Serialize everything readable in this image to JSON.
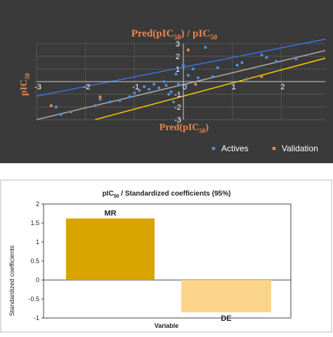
{
  "colors": {
    "panel_bg": "#3a3a3a",
    "axis_label": "#e8884a",
    "tick_text": "#ffffff",
    "actives": "#4f8fd6",
    "validation": "#ef8a4a",
    "upper_bound": "#3b6fd6",
    "fit_line": "#a9a9a9",
    "lower_bound": "#f2c200",
    "bar_mr": "#d9a300",
    "bar_de": "#fcd58a"
  },
  "chart_data": [
    {
      "type": "scatter",
      "title": "Pred(pIC50) / pIC50",
      "title_parts": {
        "pre": "Pred(pIC",
        "sub": "50",
        "post": ") / pIC",
        "sub2": "50"
      },
      "xlabel_parts": {
        "pre": "Pred(pIC",
        "sub": "50",
        "post": ")"
      },
      "ylabel_parts": {
        "pre": "pIC",
        "sub": "50"
      },
      "xlim": [
        -3,
        2.9
      ],
      "ylim": [
        -3,
        3
      ],
      "x_ticks": [
        -3,
        -2,
        -1,
        0,
        1,
        2
      ],
      "x_tick_labels": [
        "-3",
        "-2",
        "-1",
        "0",
        "1",
        "2"
      ],
      "y_ticks": [
        -3,
        -2,
        -1,
        0,
        1,
        2,
        3
      ],
      "y_tick_labels": [
        "-3",
        "-2",
        "-1",
        "0",
        "1",
        "2",
        "3"
      ],
      "legend_position": "bottom",
      "series": [
        {
          "name": "Actives",
          "points": [
            [
              -2.6,
              -2.0
            ],
            [
              -2.5,
              -2.6
            ],
            [
              -2.3,
              -2.4
            ],
            [
              -1.8,
              -1.9
            ],
            [
              -1.7,
              -1.4
            ],
            [
              -1.5,
              -1.6
            ],
            [
              -1.3,
              -1.5
            ],
            [
              -1.1,
              -1.2
            ],
            [
              -1.0,
              -0.9
            ],
            [
              -0.9,
              -0.7
            ],
            [
              -0.8,
              -0.4
            ],
            [
              -0.7,
              -0.6
            ],
            [
              -0.6,
              -0.2
            ],
            [
              -0.5,
              -0.5
            ],
            [
              -0.4,
              0.0
            ],
            [
              -0.35,
              -0.3
            ],
            [
              -0.3,
              -1.0
            ],
            [
              -0.25,
              -0.8
            ],
            [
              -0.2,
              -1.6
            ],
            [
              -0.15,
              0.6
            ],
            [
              -0.1,
              -0.2
            ],
            [
              0.0,
              1.3
            ],
            [
              0.05,
              -0.3
            ],
            [
              0.1,
              0.5
            ],
            [
              0.2,
              1.0
            ],
            [
              0.3,
              0.3
            ],
            [
              0.45,
              2.7
            ],
            [
              0.6,
              0.4
            ],
            [
              0.7,
              1.1
            ],
            [
              1.1,
              1.3
            ],
            [
              1.2,
              1.5
            ],
            [
              1.3,
              0.2
            ],
            [
              1.6,
              2.1
            ],
            [
              1.7,
              1.9
            ],
            [
              1.9,
              1.6
            ],
            [
              2.3,
              1.8
            ]
          ]
        },
        {
          "name": "Validation",
          "points": [
            [
              -2.7,
              -1.9
            ],
            [
              -1.7,
              -1.2
            ],
            [
              0.1,
              2.5
            ],
            [
              0.25,
              -0.2
            ],
            [
              1.6,
              0.4
            ]
          ]
        }
      ],
      "lines": [
        {
          "name": "upper",
          "x": [
            -3,
            2.9
          ],
          "y": [
            -1.15,
            3.35
          ]
        },
        {
          "name": "fit",
          "x": [
            -3,
            2.9
          ],
          "y": [
            -3.0,
            2.45
          ]
        },
        {
          "name": "lower",
          "x": [
            -1.8,
            2.9
          ],
          "y": [
            -3.0,
            1.85
          ]
        }
      ]
    },
    {
      "type": "bar",
      "title_parts": {
        "pre": "pIC",
        "sub": "50",
        "post": " / Standardized coefficients (95%)"
      },
      "xlabel": "Variable",
      "ylabel": "Standardized coefficients",
      "categories": [
        "MR",
        "DE"
      ],
      "values": [
        1.62,
        -0.85
      ],
      "ylim": [
        -1,
        2
      ],
      "y_ticks": [
        -1,
        -0.5,
        0,
        0.5,
        1,
        1.5,
        2
      ],
      "y_tick_labels": [
        "-1",
        "-0.5",
        "0",
        "0.5",
        "1",
        "1.5",
        "2"
      ]
    }
  ]
}
